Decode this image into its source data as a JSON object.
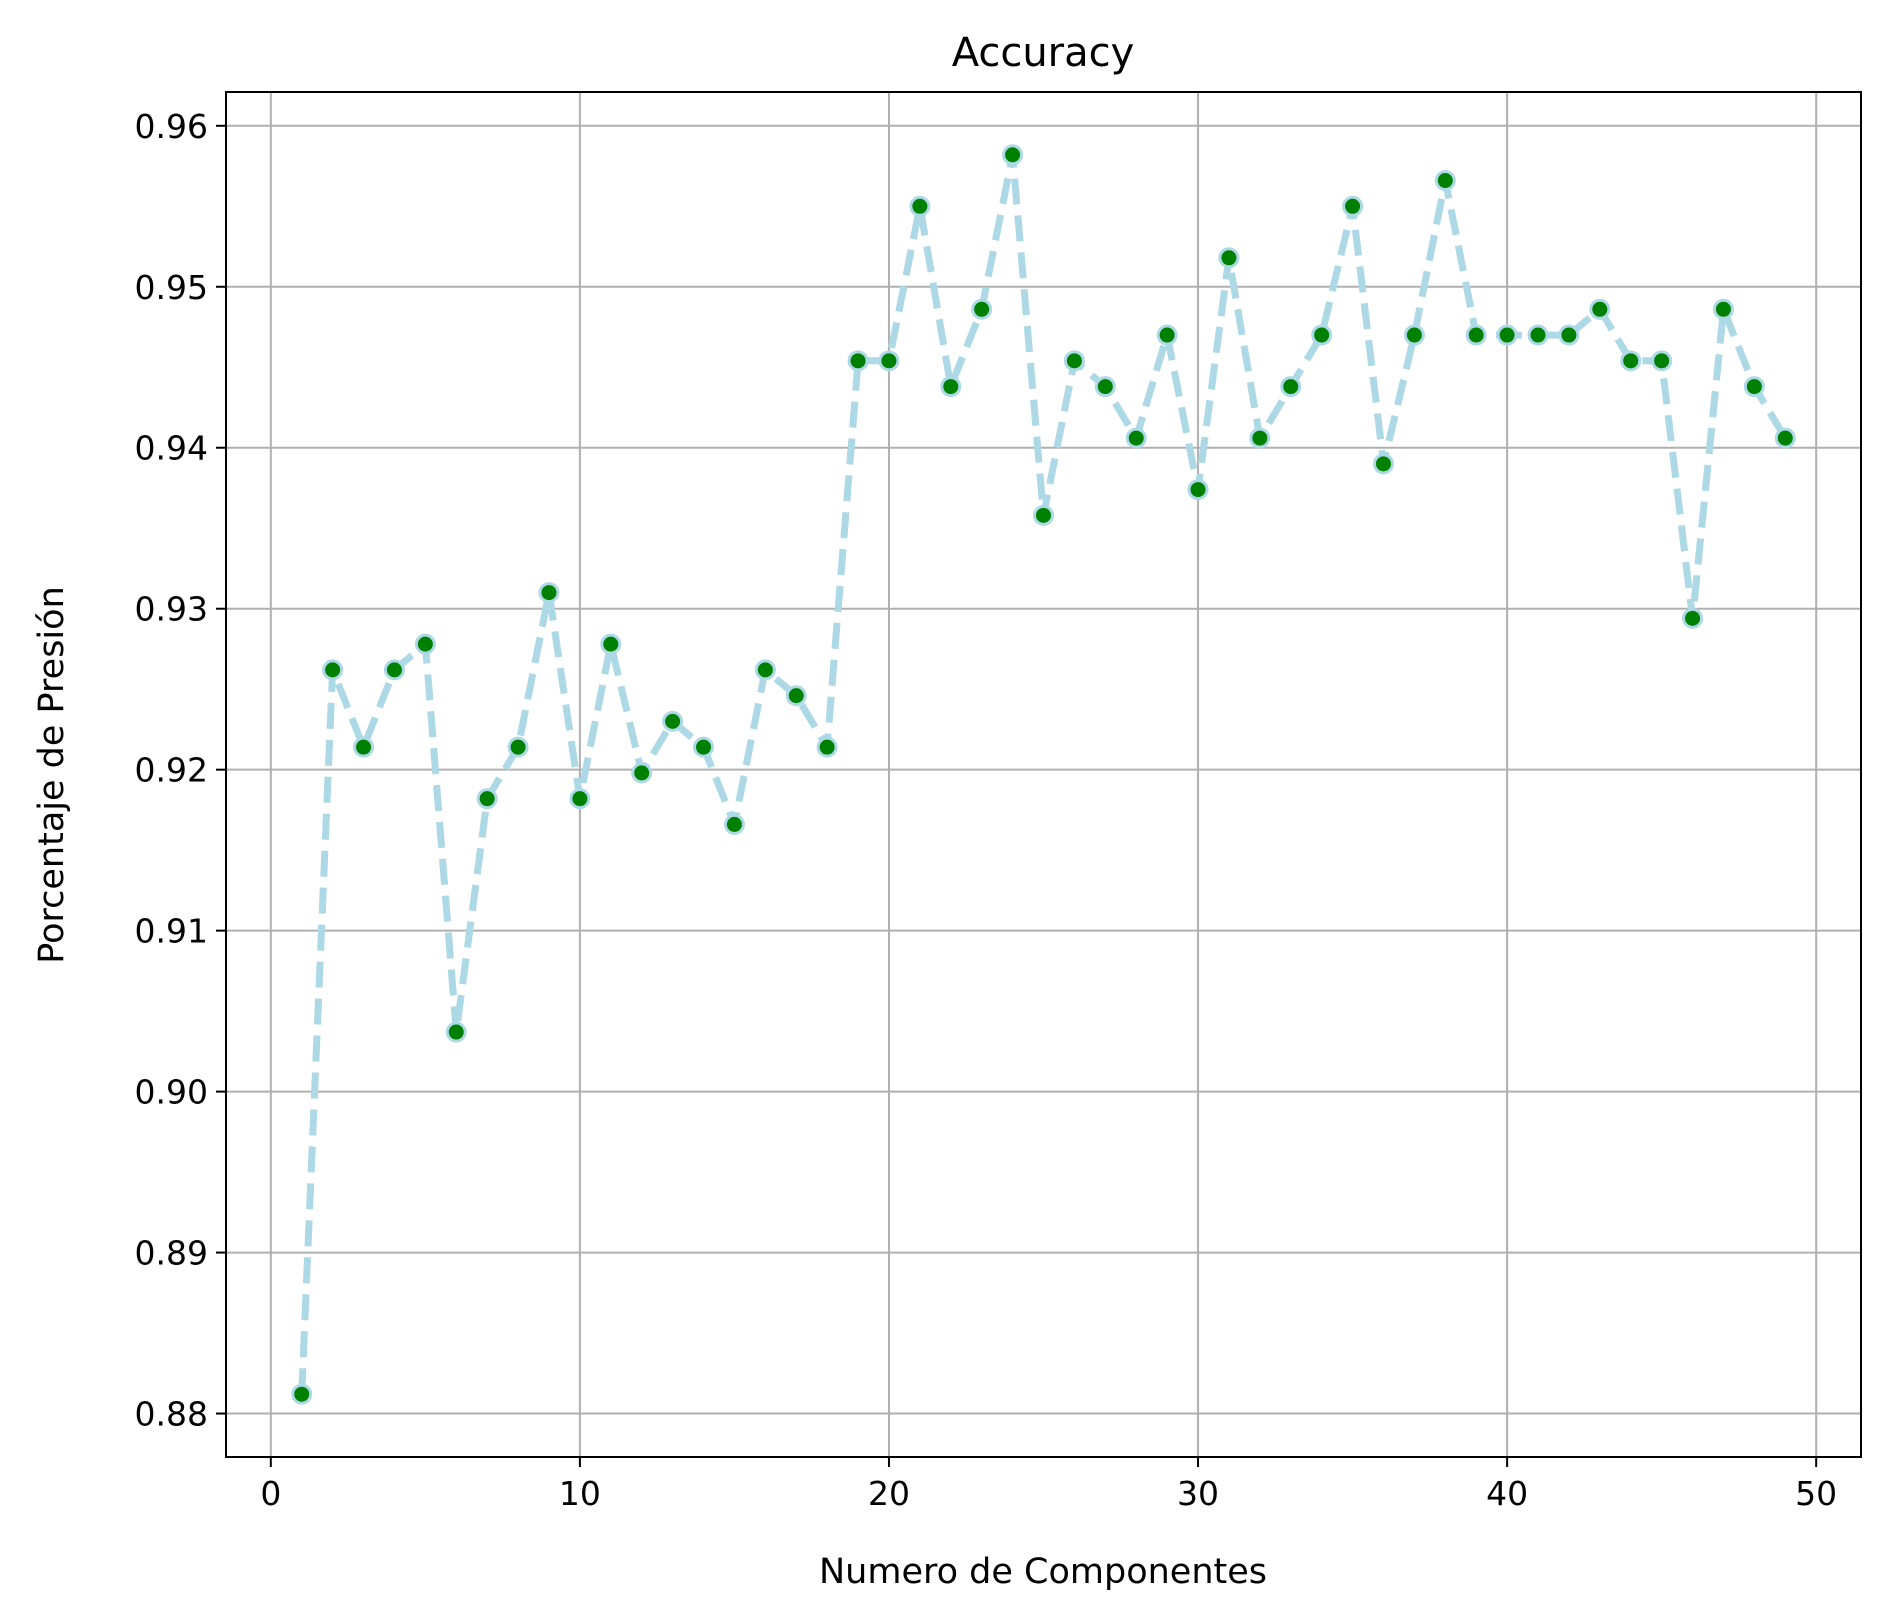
{
  "chart_data": {
    "type": "line",
    "title": "Accuracy",
    "xlabel": "Numero de Componentes",
    "ylabel": "Porcentaje de Presión",
    "xlim": [
      -1.45,
      51.45
    ],
    "ylim": [
      0.8773,
      0.9621
    ],
    "xticks": [
      0,
      10,
      20,
      30,
      40,
      50
    ],
    "xtick_labels": [
      "0",
      "10",
      "20",
      "30",
      "40",
      "50"
    ],
    "yticks": [
      0.88,
      0.89,
      0.9,
      0.91,
      0.92,
      0.93,
      0.94,
      0.95,
      0.96
    ],
    "ytick_labels": [
      "0.88",
      "0.89",
      "0.90",
      "0.91",
      "0.92",
      "0.93",
      "0.94",
      "0.95",
      "0.96"
    ],
    "grid": true,
    "line_color": "#add8e6",
    "line_style": "dashed",
    "marker_color": "#008000",
    "marker_edge_color": "#add8e6",
    "series": [
      {
        "x": [
          1,
          2,
          3,
          4,
          5,
          6,
          7,
          8,
          9,
          10,
          11,
          12,
          13,
          14,
          15,
          16,
          17,
          18,
          19,
          20,
          21,
          22,
          23,
          24,
          25,
          26,
          27,
          28,
          29,
          30,
          31,
          32,
          33,
          34,
          35,
          36,
          37,
          38,
          39,
          40,
          41,
          42,
          43,
          44,
          45,
          46,
          47,
          48,
          49
        ],
        "values": [
          0.8812,
          0.9262,
          0.9214,
          0.9262,
          0.9278,
          0.9037,
          0.9182,
          0.9214,
          0.931,
          0.9182,
          0.9278,
          0.9198,
          0.923,
          0.9214,
          0.9166,
          0.9262,
          0.9246,
          0.9214,
          0.9454,
          0.9454,
          0.955,
          0.9438,
          0.9486,
          0.9582,
          0.9358,
          0.9454,
          0.9438,
          0.9406,
          0.947,
          0.9374,
          0.9518,
          0.9406,
          0.9438,
          0.947,
          0.955,
          0.939,
          0.947,
          0.9566,
          0.947,
          0.947,
          0.947,
          0.947,
          0.9486,
          0.9454,
          0.9454,
          0.9294,
          0.9486,
          0.9438,
          0.9406
        ]
      }
    ]
  }
}
